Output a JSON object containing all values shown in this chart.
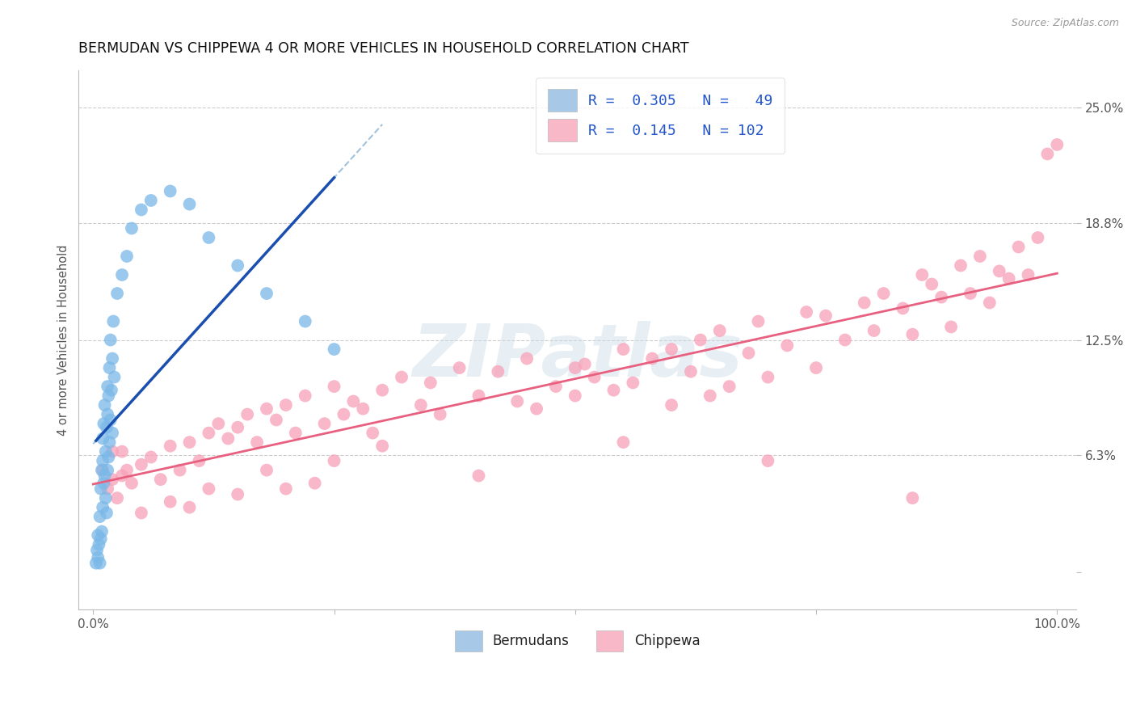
{
  "title": "BERMUDAN VS CHIPPEWA 4 OR MORE VEHICLES IN HOUSEHOLD CORRELATION CHART",
  "source": "Source: ZipAtlas.com",
  "ylabel": "4 or more Vehicles in Household",
  "bermudan_color": "#7ab8e8",
  "chippewa_color": "#f8a0b8",
  "bermudan_line_color": "#1a4fb0",
  "chippewa_line_color": "#e86080",
  "bermudan_dash_color": "#90b8d8",
  "watermark": "ZIPatlas",
  "scatter_size": 130,
  "bermudan_x": [
    0.3,
    0.4,
    0.5,
    0.5,
    0.6,
    0.7,
    0.7,
    0.8,
    0.8,
    0.9,
    0.9,
    1.0,
    1.0,
    1.0,
    1.1,
    1.1,
    1.2,
    1.2,
    1.3,
    1.3,
    1.4,
    1.4,
    1.5,
    1.5,
    1.5,
    1.6,
    1.6,
    1.7,
    1.7,
    1.8,
    1.8,
    1.9,
    2.0,
    2.0,
    2.1,
    2.2,
    2.5,
    3.0,
    3.5,
    4.0,
    5.0,
    6.0,
    8.0,
    10.0,
    12.0,
    15.0,
    18.0,
    22.0,
    25.0
  ],
  "bermudan_y": [
    0.5,
    1.2,
    0.8,
    2.0,
    1.5,
    0.5,
    3.0,
    1.8,
    4.5,
    2.2,
    5.5,
    3.5,
    6.0,
    7.2,
    4.8,
    8.0,
    5.2,
    9.0,
    4.0,
    6.5,
    3.2,
    7.8,
    5.5,
    8.5,
    10.0,
    6.2,
    9.5,
    7.0,
    11.0,
    8.2,
    12.5,
    9.8,
    7.5,
    11.5,
    13.5,
    10.5,
    15.0,
    16.0,
    17.0,
    18.5,
    19.5,
    20.0,
    20.5,
    19.8,
    18.0,
    16.5,
    15.0,
    13.5,
    12.0
  ],
  "chippewa_x": [
    1.0,
    1.5,
    2.0,
    2.5,
    3.0,
    3.5,
    4.0,
    5.0,
    6.0,
    7.0,
    8.0,
    9.0,
    10.0,
    11.0,
    12.0,
    13.0,
    14.0,
    15.0,
    16.0,
    17.0,
    18.0,
    19.0,
    20.0,
    21.0,
    22.0,
    24.0,
    25.0,
    26.0,
    27.0,
    28.0,
    29.0,
    30.0,
    32.0,
    34.0,
    35.0,
    36.0,
    38.0,
    40.0,
    42.0,
    44.0,
    45.0,
    46.0,
    48.0,
    50.0,
    51.0,
    52.0,
    54.0,
    55.0,
    56.0,
    58.0,
    60.0,
    62.0,
    63.0,
    64.0,
    65.0,
    66.0,
    68.0,
    69.0,
    70.0,
    72.0,
    74.0,
    75.0,
    76.0,
    78.0,
    80.0,
    81.0,
    82.0,
    84.0,
    85.0,
    86.0,
    87.0,
    88.0,
    89.0,
    90.0,
    91.0,
    92.0,
    93.0,
    94.0,
    95.0,
    96.0,
    97.0,
    98.0,
    99.0,
    100.0,
    50.0,
    60.0,
    20.0,
    25.0,
    15.0,
    10.0,
    8.0,
    5.0,
    3.0,
    2.0,
    12.0,
    18.0,
    23.0,
    30.0,
    40.0,
    55.0,
    70.0,
    85.0
  ],
  "chippewa_y": [
    5.5,
    4.5,
    5.0,
    4.0,
    6.5,
    5.5,
    4.8,
    5.8,
    6.2,
    5.0,
    6.8,
    5.5,
    7.0,
    6.0,
    7.5,
    8.0,
    7.2,
    7.8,
    8.5,
    7.0,
    8.8,
    8.2,
    9.0,
    7.5,
    9.5,
    8.0,
    10.0,
    8.5,
    9.2,
    8.8,
    7.5,
    9.8,
    10.5,
    9.0,
    10.2,
    8.5,
    11.0,
    9.5,
    10.8,
    9.2,
    11.5,
    8.8,
    10.0,
    9.5,
    11.2,
    10.5,
    9.8,
    12.0,
    10.2,
    11.5,
    9.0,
    10.8,
    12.5,
    9.5,
    13.0,
    10.0,
    11.8,
    13.5,
    10.5,
    12.2,
    14.0,
    11.0,
    13.8,
    12.5,
    14.5,
    13.0,
    15.0,
    14.2,
    12.8,
    16.0,
    15.5,
    14.8,
    13.2,
    16.5,
    15.0,
    17.0,
    14.5,
    16.2,
    15.8,
    17.5,
    16.0,
    18.0,
    22.5,
    23.0,
    11.0,
    12.0,
    4.5,
    6.0,
    4.2,
    3.5,
    3.8,
    3.2,
    5.2,
    6.5,
    4.5,
    5.5,
    4.8,
    6.8,
    5.2,
    7.0,
    6.0,
    4.0
  ]
}
